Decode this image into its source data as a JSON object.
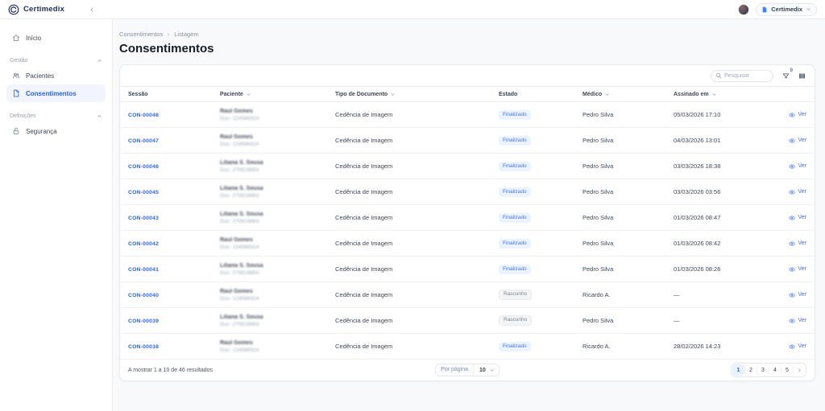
{
  "topbar": {
    "brand": "Certimedix",
    "workspace_label": "Certimedix"
  },
  "sidebar": {
    "home": "Início",
    "sections": [
      {
        "label": "Gestão",
        "items": [
          {
            "label": "Pacientes",
            "icon": "users-icon",
            "active": false
          },
          {
            "label": "Consentimentos",
            "icon": "document-icon",
            "active": true
          }
        ]
      },
      {
        "label": "Definições",
        "items": [
          {
            "label": "Segurança",
            "icon": "lock-icon",
            "active": false
          }
        ]
      }
    ]
  },
  "breadcrumb": {
    "parent": "Consentimentos",
    "current": "Listagem"
  },
  "page": {
    "title": "Consentimentos"
  },
  "toolbar": {
    "search_placeholder": "Pesquisar",
    "filter_count": "0"
  },
  "table": {
    "headers": [
      {
        "label": "Sessão",
        "sortable": false
      },
      {
        "label": "Paciente",
        "sortable": true
      },
      {
        "label": "Tipo de Documento",
        "sortable": true
      },
      {
        "label": "Estado",
        "sortable": false
      },
      {
        "label": "Médico",
        "sortable": true
      },
      {
        "label": "Assinado em",
        "sortable": true
      }
    ],
    "action_label": "Ver",
    "rows": [
      {
        "session": "CON-00048",
        "patient_name": "Raul Gomes",
        "patient_doc": "Doc: 124586324",
        "doc_type": "Cedência de Imagem",
        "status": "Finalizado",
        "status_kind": "final",
        "medico": "Pedro Silva",
        "signed_at": "05/03/2026 17:10"
      },
      {
        "session": "CON-00047",
        "patient_name": "Raul Gomes",
        "patient_doc": "Doc: 124586324",
        "doc_type": "Cedência de Imagem",
        "status": "Finalizado",
        "status_kind": "final",
        "medico": "Pedro Silva",
        "signed_at": "04/03/2026 13:01"
      },
      {
        "session": "CON-00046",
        "patient_name": "Liliana S. Sousa",
        "patient_doc": "Doc: 275519884",
        "doc_type": "Cedência de Imagem",
        "status": "Finalizado",
        "status_kind": "final",
        "medico": "Pedro Silva",
        "signed_at": "03/03/2026 18:38"
      },
      {
        "session": "CON-00045",
        "patient_name": "Liliana S. Sousa",
        "patient_doc": "Doc: 275519884",
        "doc_type": "Cedência de Imagem",
        "status": "Finalizado",
        "status_kind": "final",
        "medico": "Pedro Silva",
        "signed_at": "03/03/2026 03:56"
      },
      {
        "session": "CON-00043",
        "patient_name": "Liliana S. Sousa",
        "patient_doc": "Doc: 275519884",
        "doc_type": "Cedência de Imagem",
        "status": "Finalizado",
        "status_kind": "final",
        "medico": "Pedro Silva",
        "signed_at": "01/03/2026 08:47"
      },
      {
        "session": "CON-00042",
        "patient_name": "Raul Gomes",
        "patient_doc": "Doc: 124586324",
        "doc_type": "Cedência de Imagem",
        "status": "Finalizado",
        "status_kind": "final",
        "medico": "Pedro Silva",
        "signed_at": "01/03/2026 08:42"
      },
      {
        "session": "CON-00041",
        "patient_name": "Liliana S. Sousa",
        "patient_doc": "Doc: 275519884",
        "doc_type": "Cedência de Imagem",
        "status": "Finalizado",
        "status_kind": "final",
        "medico": "Pedro Silva",
        "signed_at": "01/03/2026 08:26"
      },
      {
        "session": "CON-00040",
        "patient_name": "Raul Gomes",
        "patient_doc": "Doc: 124586324",
        "doc_type": "Cedência de Imagem",
        "status": "Rascunho",
        "status_kind": "draft",
        "medico": "Ricardo A.",
        "signed_at": "—"
      },
      {
        "session": "CON-00039",
        "patient_name": "Liliana S. Sousa",
        "patient_doc": "Doc: 275519884",
        "doc_type": "Cedência de Imagem",
        "status": "Rascunho",
        "status_kind": "draft",
        "medico": "Pedro Silva",
        "signed_at": "—"
      },
      {
        "session": "CON-00038",
        "patient_name": "Raul Gomes",
        "patient_doc": "Doc: 124586324",
        "doc_type": "Cedência de Imagem",
        "status": "Finalizado",
        "status_kind": "final",
        "medico": "Ricardo A.",
        "signed_at": "28/02/2026 14:23"
      }
    ]
  },
  "footer": {
    "results_text": "A mostrar 1 a 10 de 46 resultados",
    "per_page_label": "Por página",
    "per_page_value": "10",
    "pages": [
      "1",
      "2",
      "3",
      "4",
      "5"
    ],
    "active_page": "1"
  },
  "colors": {
    "accent": "#2f6bf0",
    "brand_navy": "#23305e",
    "badge_final_bg": "#ecf2fe",
    "badge_final_text": "#4476f2",
    "badge_draft_bg": "#f4f5f7",
    "badge_draft_text": "#7c838e",
    "active_nav_bg": "#f2f5fd"
  }
}
